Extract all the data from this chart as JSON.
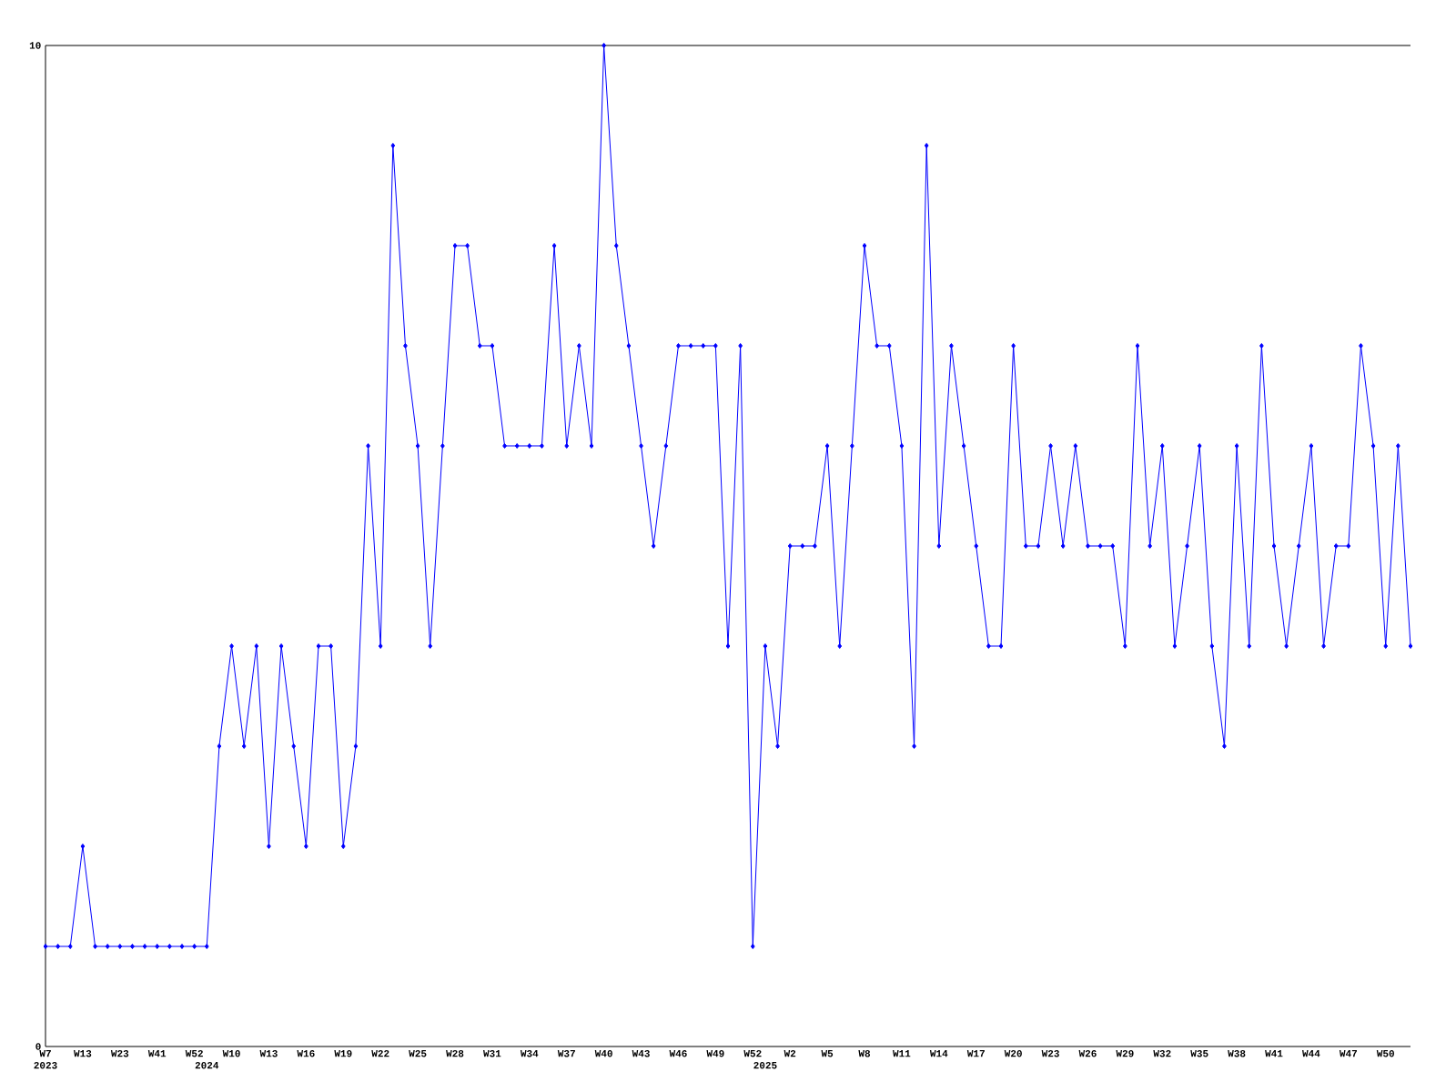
{
  "chart_data": {
    "type": "line",
    "categories": [
      "W7 2023",
      null,
      null,
      "W13",
      null,
      null,
      "W23",
      null,
      null,
      "W41",
      null,
      null,
      "W52",
      "2024",
      null,
      "W10",
      null,
      null,
      "W13",
      null,
      null,
      "W16",
      null,
      null,
      "W19",
      null,
      null,
      "W22",
      null,
      null,
      "W25",
      null,
      null,
      "W28",
      null,
      null,
      "W31",
      null,
      null,
      "W34",
      null,
      null,
      "W37",
      null,
      null,
      "W40",
      null,
      null,
      "W43",
      null,
      null,
      "W46",
      null,
      null,
      "W49",
      null,
      null,
      "W52",
      "2025",
      null,
      "W2",
      null,
      null,
      "W5",
      null,
      null,
      "W8",
      null,
      null,
      "W11",
      null,
      null,
      "W14",
      null,
      null,
      "W17",
      null,
      null,
      "W20",
      null,
      null,
      "W23",
      null,
      null,
      "W26",
      null,
      null,
      "W29",
      null,
      null,
      "W32",
      null,
      null,
      "W35",
      null,
      null,
      "W38",
      null,
      null,
      "W41",
      null,
      null,
      "W44",
      null,
      null,
      "W47",
      null,
      null,
      "W50",
      null,
      null
    ],
    "values": [
      1,
      1,
      1,
      2,
      1,
      1,
      1,
      1,
      1,
      1,
      1,
      1,
      1,
      1,
      3,
      4,
      3,
      4,
      2,
      4,
      3,
      2,
      4,
      4,
      2,
      3,
      6,
      4,
      9,
      7,
      6,
      4,
      6,
      8,
      8,
      7,
      7,
      6,
      6,
      6,
      6,
      8,
      6,
      7,
      6,
      10,
      8,
      7,
      6,
      5,
      6,
      7,
      7,
      7,
      7,
      4,
      7,
      1,
      4,
      3,
      5,
      5,
      5,
      6,
      4,
      6,
      8,
      7,
      7,
      6,
      3,
      9,
      5,
      7,
      6,
      5,
      4,
      4,
      7,
      5,
      5,
      6,
      5,
      6,
      5,
      5,
      5,
      4,
      7,
      5,
      6,
      4,
      5,
      6,
      4,
      3,
      6,
      4,
      7,
      5,
      4,
      5,
      6,
      4,
      5,
      5,
      7,
      6,
      4,
      6,
      4
    ],
    "color": "#0000ff",
    "marker": "diamond",
    "ylim": [
      0,
      10
    ],
    "yticks": [
      0,
      10
    ]
  }
}
